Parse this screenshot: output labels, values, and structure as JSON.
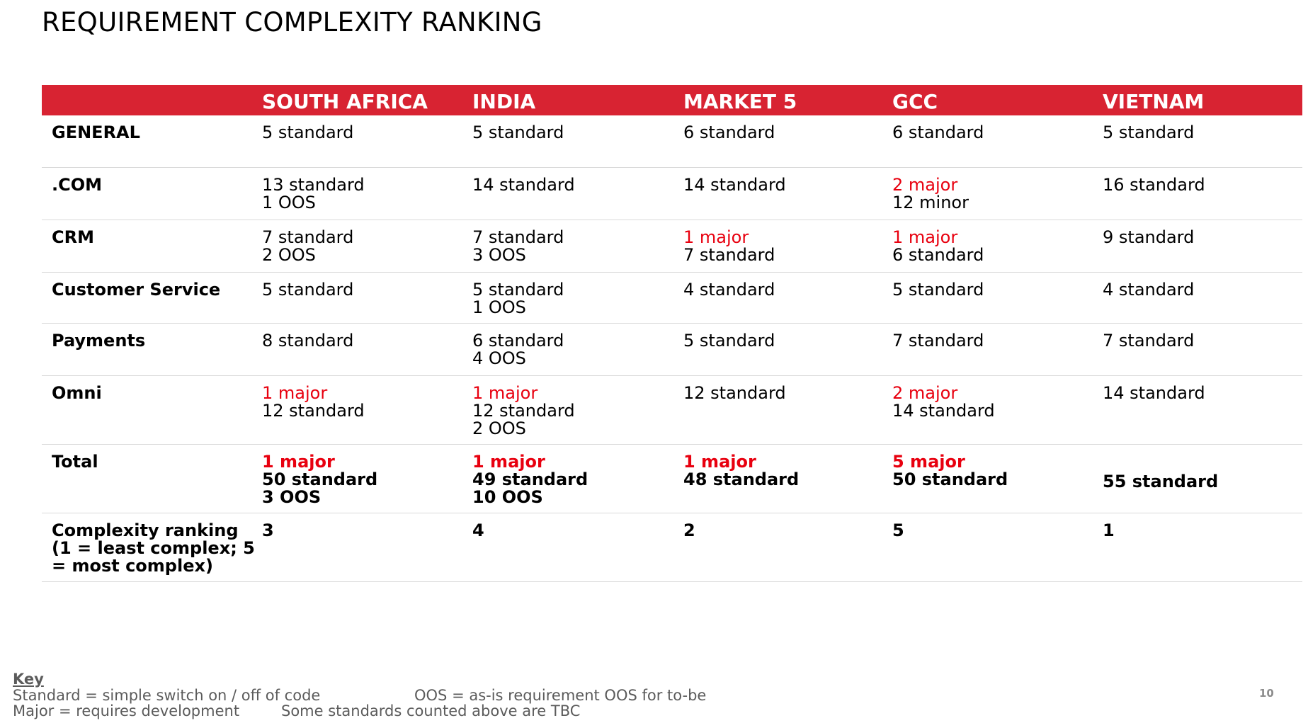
{
  "slide": {
    "title": "REQUIREMENT COMPLEXITY RANKING",
    "page_number": "10"
  },
  "table": {
    "columns": [
      "SOUTH AFRICA",
      "INDIA",
      "MARKET 5",
      "GCC",
      "VIETNAM"
    ],
    "rows": [
      {
        "label": "GENERAL",
        "cells": [
          [
            {
              "text": "5 standard"
            }
          ],
          [
            {
              "text": "5 standard"
            }
          ],
          [
            {
              "text": "6 standard"
            }
          ],
          [
            {
              "text": "6 standard"
            }
          ],
          [
            {
              "text": "5 standard"
            }
          ]
        ]
      },
      {
        "label": ".COM",
        "cells": [
          [
            {
              "text": "13 standard"
            },
            {
              "text": "1 OOS"
            }
          ],
          [
            {
              "text": "14 standard"
            }
          ],
          [
            {
              "text": "14 standard"
            }
          ],
          [
            {
              "text": "2 major",
              "color": "#e8000f"
            },
            {
              "text": "12 minor"
            }
          ],
          [
            {
              "text": "16 standard"
            }
          ]
        ]
      },
      {
        "label": "CRM",
        "cells": [
          [
            {
              "text": "7 standard"
            },
            {
              "text": "2 OOS"
            }
          ],
          [
            {
              "text": "7 standard"
            },
            {
              "text": "3 OOS"
            }
          ],
          [
            {
              "text": "1 major",
              "color": "#e8000f"
            },
            {
              "text": "7 standard"
            }
          ],
          [
            {
              "text": "1 major",
              "color": "#e8000f"
            },
            {
              "text": "6 standard"
            }
          ],
          [
            {
              "text": "9 standard"
            }
          ]
        ]
      },
      {
        "label": "Customer Service",
        "cells": [
          [
            {
              "text": "5 standard"
            }
          ],
          [
            {
              "text": "5 standard"
            },
            {
              "text": "1 OOS"
            }
          ],
          [
            {
              "text": "4 standard"
            }
          ],
          [
            {
              "text": "5 standard"
            }
          ],
          [
            {
              "text": "4 standard"
            }
          ]
        ]
      },
      {
        "label": "Payments",
        "cells": [
          [
            {
              "text": "8 standard"
            }
          ],
          [
            {
              "text": "6 standard"
            },
            {
              "text": "4 OOS"
            }
          ],
          [
            {
              "text": "5 standard"
            }
          ],
          [
            {
              "text": "7 standard"
            }
          ],
          [
            {
              "text": "7 standard"
            }
          ]
        ]
      },
      {
        "label": "Omni",
        "cells": [
          [
            {
              "text": "1 major",
              "color": "#e8000f"
            },
            {
              "text": "12 standard"
            }
          ],
          [
            {
              "text": "1 major",
              "color": "#e8000f"
            },
            {
              "text": "12 standard"
            },
            {
              "text": "2 OOS"
            }
          ],
          [
            {
              "text": "12 standard"
            }
          ],
          [
            {
              "text": "2 major",
              "color": "#e8000f"
            },
            {
              "text": "14 standard"
            }
          ],
          [
            {
              "text": "14 standard"
            }
          ]
        ]
      }
    ],
    "total": {
      "label": "Total",
      "cells": [
        [
          {
            "text": "1 major",
            "color": "#e8000f"
          },
          {
            "text": "50 standard"
          },
          {
            "text": "3 OOS"
          }
        ],
        [
          {
            "text": "1 major",
            "color": "#e8000f"
          },
          {
            "text": "49 standard"
          },
          {
            "text": "10 OOS"
          }
        ],
        [
          {
            "text": "1 major",
            "color": "#e8000f"
          },
          {
            "text": "48 standard"
          }
        ],
        [
          {
            "text": "5 major",
            "color": "#e8000f"
          },
          {
            "text": "50 standard"
          }
        ],
        [
          {
            "text": "55 standard"
          }
        ]
      ]
    },
    "ranking": {
      "label": "Complexity ranking (1 = least complex; 5 = most complex)",
      "values": [
        "3",
        "4",
        "2",
        "5",
        "1"
      ]
    }
  },
  "key": {
    "heading": "Key",
    "standard": "Standard = simple switch on / off of code",
    "oos": "OOS = as-is requirement OOS for to-be",
    "major": "Major = requires development",
    "tbc": "Some standards counted above are TBC"
  },
  "colors": {
    "header_band": "#d82332",
    "major_text": "#e8000f",
    "key_text": "#5b5b5b",
    "row_divider": "#d9d9d9"
  }
}
